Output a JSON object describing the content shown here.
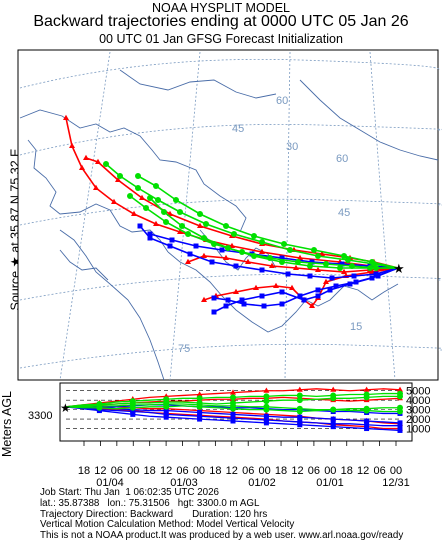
{
  "header": {
    "line1": "NOAA HYSPLIT MODEL",
    "line2": "Backward trajectories ending at 0000 UTC 05 Jan 26",
    "line3": "00 UTC 01 Jan    GFSG  Forecast Initialization"
  },
  "side_label": "Source ★ at   35.87 N   75.32 E",
  "height_axis_label": "Meters AGL",
  "start_height": "3300",
  "map_grid_labels": [
    "60",
    "45",
    "60",
    "30",
    "45",
    "75",
    "15"
  ],
  "height_ticks": [
    "5000",
    "4000",
    "3000",
    "2000",
    "1000"
  ],
  "time_hours": [
    "18",
    "12",
    "06",
    "00",
    "18",
    "12",
    "06",
    "00",
    "18",
    "12",
    "06",
    "00",
    "18",
    "12",
    "06",
    "00",
    "18",
    "12",
    "06",
    "00"
  ],
  "time_dates": [
    "01/04",
    "01/03",
    "01/02",
    "01/01",
    "12/31"
  ],
  "footer": {
    "line1": "Job Start: Thu Jan  1 06:02:35 UTC 2026",
    "line2": "lat.: 35.87388   lon.: 75.31506   hgt: 3300.0 m AGL",
    "line3": "Trajectory Direction: Backward       Duration: 120 hrs",
    "line4": "Vertical Motion Calculation Method: Model Vertical Velocity",
    "line5": "This is not a NOAA product.It was produced by a web user. www.arl.noaa.gov/ready"
  },
  "colors": {
    "red": "#ff0000",
    "blue": "#0000ff",
    "green": "#00e000",
    "grid": "#7a9ac0",
    "coast": "#4a6da8"
  },
  "chart_data": {
    "type": "line",
    "title": "Backward trajectories ending at 0000 UTC 05 Jan 26",
    "source": {
      "lat": 35.87,
      "lon": 75.32,
      "height_m_agl": 3300
    },
    "duration_hours": 120,
    "height_axis": {
      "ylabel": "Meters AGL",
      "ylim": [
        0,
        5500
      ],
      "ticks": [
        1000,
        2000,
        3000,
        4000,
        5000
      ]
    },
    "series": [
      {
        "color": "red",
        "heights_m": [
          3300,
          3500,
          3700,
          3900,
          4100,
          4300,
          4400,
          4500,
          4600,
          4700,
          4800,
          4900,
          5000,
          5000,
          5100,
          5200,
          5100,
          5000,
          5100,
          5200,
          5100
        ]
      },
      {
        "color": "red",
        "heights_m": [
          3300,
          3300,
          3400,
          3300,
          3200,
          3100,
          3100,
          3000,
          2900,
          2800,
          2700,
          2600,
          2500,
          2400,
          2300,
          2100,
          2000,
          1900,
          1800,
          1600,
          1500
        ]
      },
      {
        "color": "red",
        "heights_m": [
          3300,
          3200,
          3100,
          3000,
          2900,
          2700,
          2600,
          2500,
          2400,
          2300,
          2200,
          2100,
          2000,
          1800,
          1700,
          1600,
          1400,
          1300,
          1200,
          1000,
          1000
        ]
      },
      {
        "color": "red",
        "heights_m": [
          3300,
          3400,
          3500,
          3600,
          3700,
          3800,
          3900,
          3900,
          4000,
          4100,
          4100,
          4200,
          4200,
          4300,
          4200,
          4100,
          4000,
          3900,
          4000,
          4100,
          4200
        ]
      },
      {
        "color": "blue",
        "heights_m": [
          3300,
          3100,
          2900,
          2700,
          2500,
          2300,
          2200,
          2100,
          2000,
          1900,
          1800,
          1700,
          1600,
          1500,
          1400,
          1300,
          1200,
          1100,
          1000,
          900,
          800
        ]
      },
      {
        "color": "blue",
        "heights_m": [
          3300,
          3300,
          3200,
          3300,
          3400,
          3500,
          3500,
          3400,
          3300,
          3300,
          3200,
          3200,
          3100,
          3000,
          3000,
          2900,
          2800,
          2800,
          2700,
          2600,
          2600
        ]
      },
      {
        "color": "blue",
        "heights_m": [
          3300,
          3200,
          3000,
          2900,
          2800,
          2700,
          2500,
          2400,
          2300,
          2200,
          2100,
          2000,
          1900,
          1800,
          1700,
          1600,
          1500,
          1500,
          1400,
          1300,
          1300
        ]
      },
      {
        "color": "blue",
        "heights_m": [
          3300,
          3400,
          3300,
          3100,
          3000,
          2900,
          2900,
          2800,
          2700,
          2600,
          2500,
          2400,
          2300,
          2200,
          2200,
          2100,
          2000,
          1900,
          1800,
          1700,
          1600
        ]
      },
      {
        "color": "green",
        "heights_m": [
          3300,
          3400,
          3500,
          3600,
          3700,
          3700,
          3800,
          3800,
          3700,
          3600,
          3700,
          3800,
          3900,
          4000,
          4000,
          4100,
          4200,
          4200,
          4300,
          4400,
          4400
        ]
      },
      {
        "color": "green",
        "heights_m": [
          3300,
          3200,
          3200,
          3100,
          3200,
          3300,
          3300,
          3400,
          3300,
          3200,
          3100,
          3000,
          3000,
          2900,
          2800,
          2900,
          3000,
          3100,
          3100,
          3200,
          3200
        ]
      },
      {
        "color": "green",
        "heights_m": [
          3300,
          3500,
          3600,
          3800,
          3900,
          4000,
          4100,
          4200,
          4200,
          4300,
          4300,
          4400,
          4400,
          4500,
          4500,
          4400,
          4500,
          4600,
          4600,
          4700,
          4700
        ]
      },
      {
        "color": "green",
        "heights_m": [
          3300,
          3300,
          3400,
          3400,
          3500,
          3500,
          3600,
          3600,
          3500,
          3400,
          3400,
          3300,
          3300,
          3200,
          3100,
          3000,
          3000,
          2900,
          2900,
          2800,
          2800
        ]
      }
    ]
  }
}
